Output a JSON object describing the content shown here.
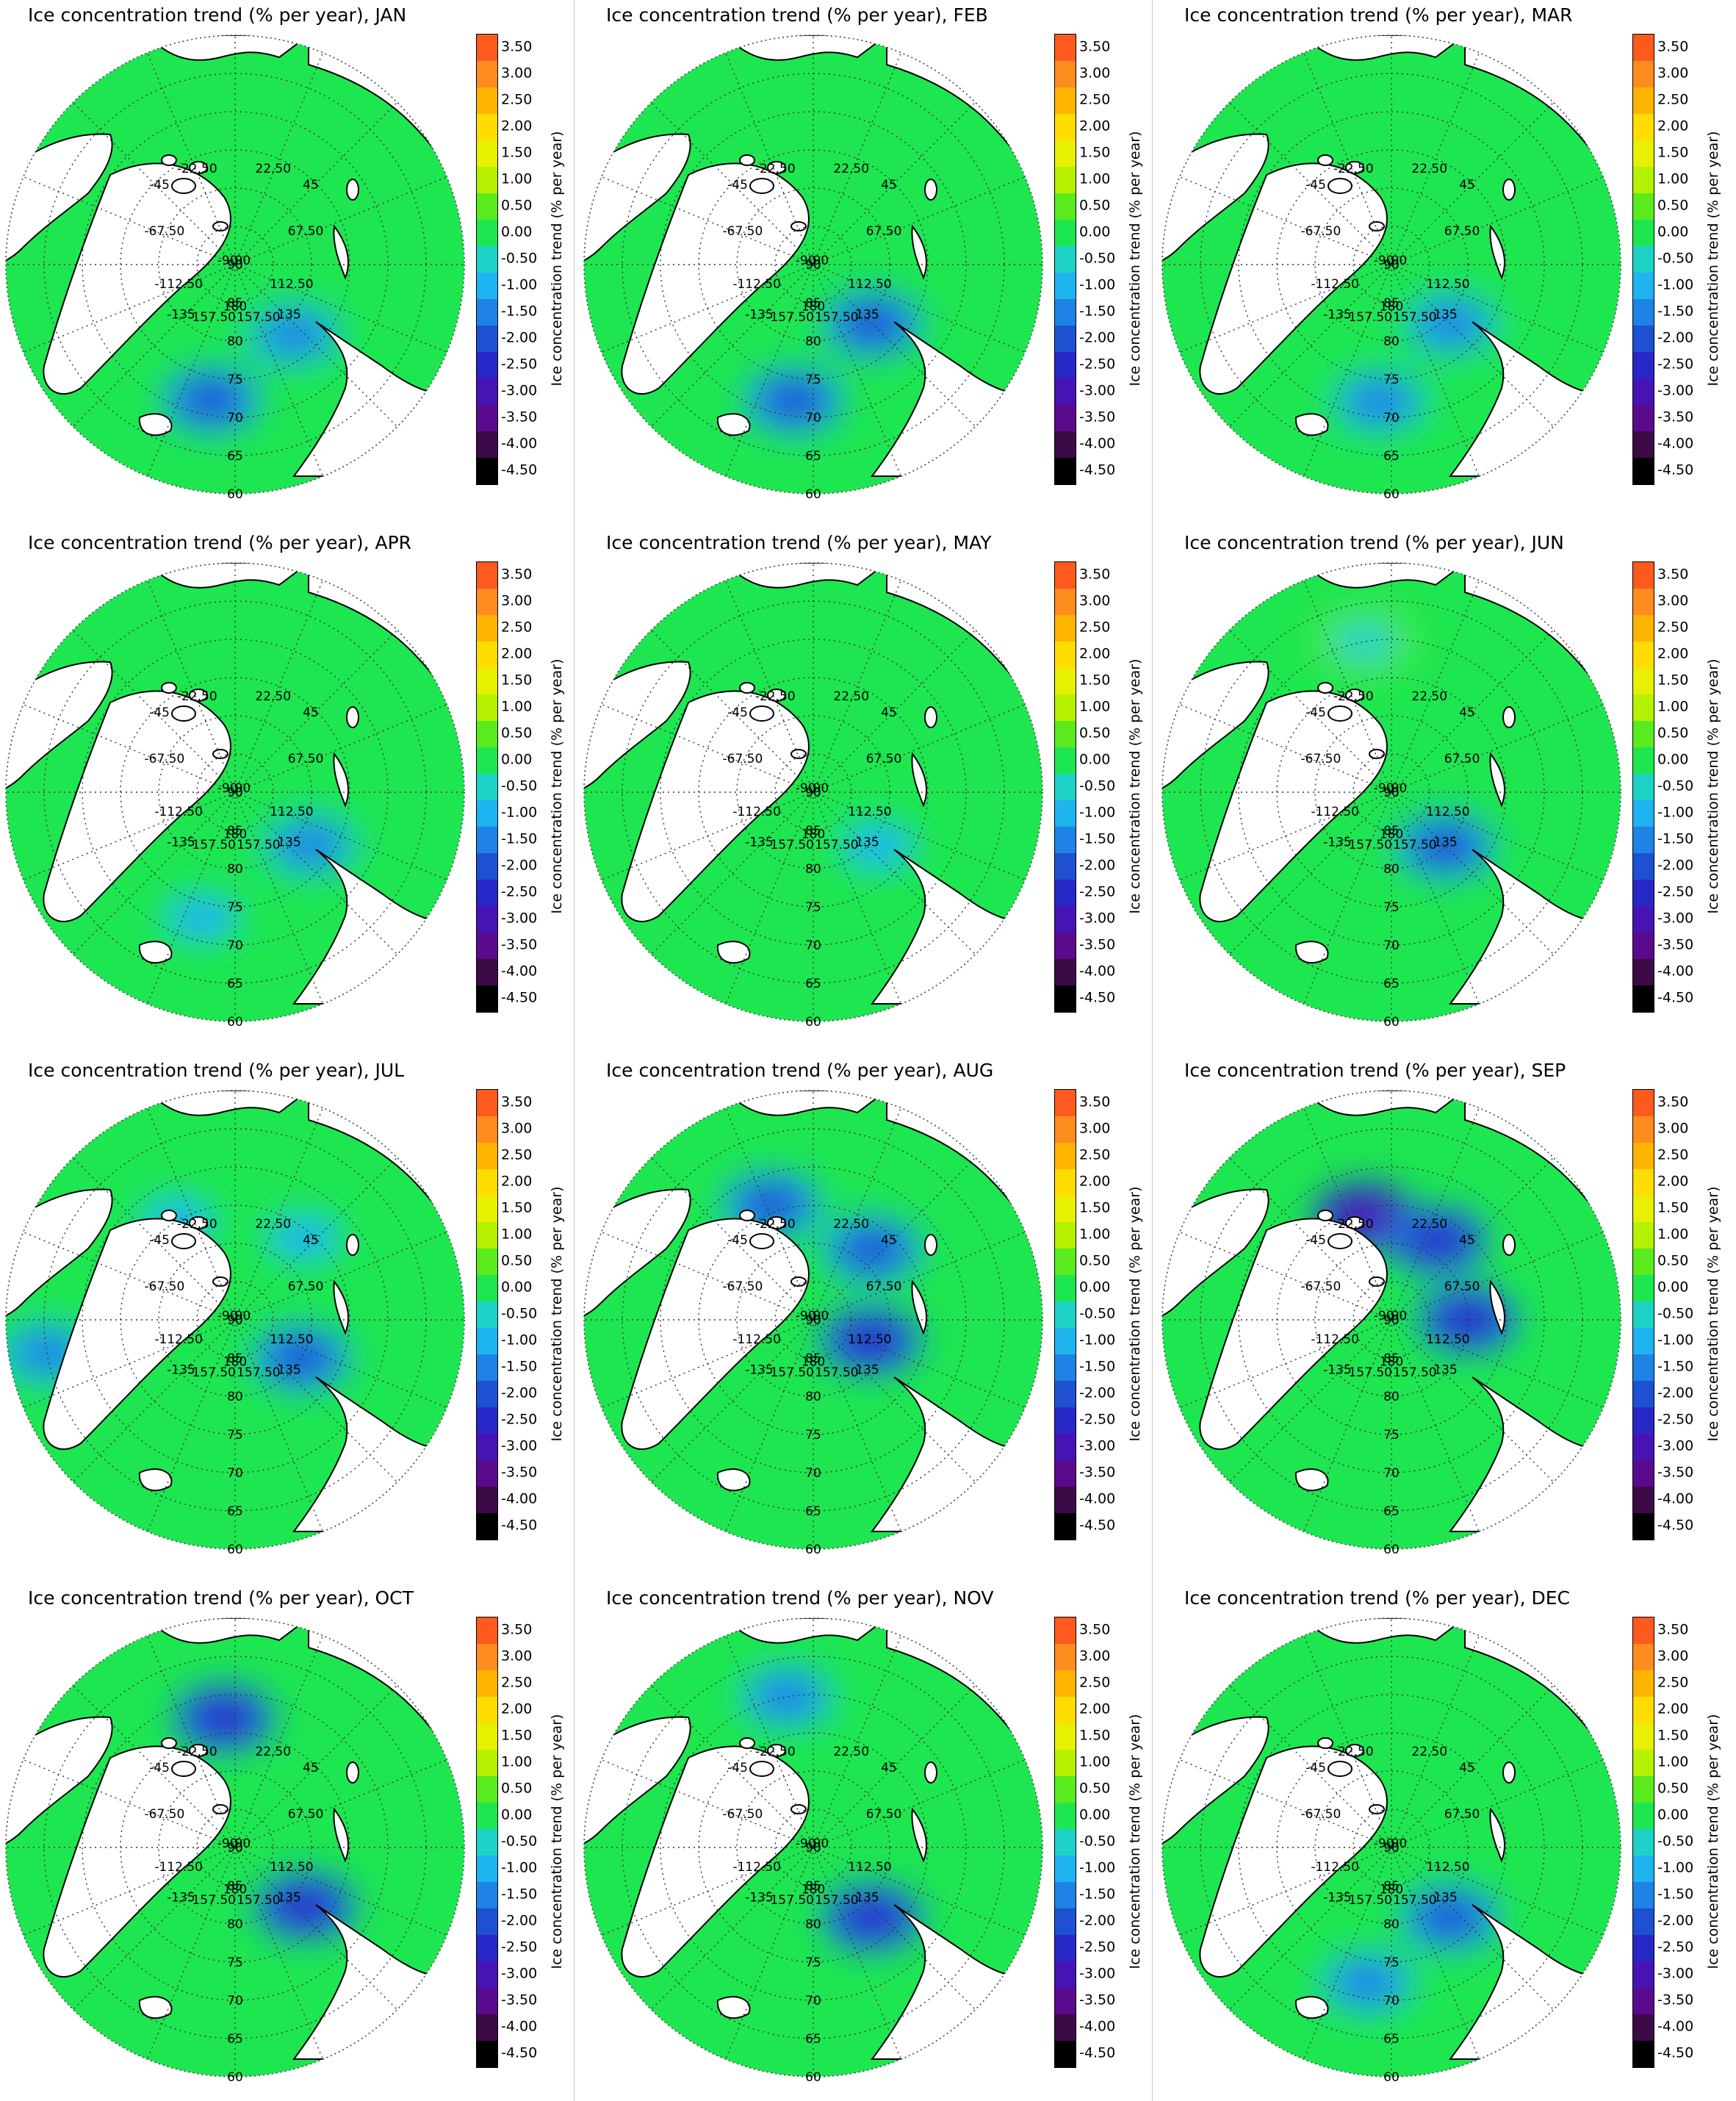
{
  "figure": {
    "colorbar": {
      "title": "Ice concentration trend (% per year)",
      "ticks": [
        "3.50",
        "3.00",
        "2.50",
        "2.00",
        "1.50",
        "1.00",
        "0.50",
        "0.00",
        "-0.50",
        "-1.00",
        "-1.50",
        "-2.00",
        "-2.50",
        "-3.00",
        "-3.50",
        "-4.00",
        "-4.50"
      ],
      "colors": [
        "#ff5a1e",
        "#ff8c1e",
        "#ffb400",
        "#ffdc00",
        "#e6f000",
        "#b4f000",
        "#5aeb1e",
        "#1ee650",
        "#1ed2c8",
        "#1eb4f0",
        "#1e82e6",
        "#1e50d2",
        "#2828c8",
        "#4614b4",
        "#5a0a8c",
        "#3c0a46",
        "#000000"
      ]
    },
    "map_labels": {
      "longitudes": [
        "180",
        "-157.50",
        "157.50",
        "-135",
        "135",
        "-112.50",
        "112.50",
        "-90",
        "90",
        "-67.50",
        "67.50",
        "-45",
        "45",
        "-22.50",
        "22.50"
      ],
      "latitudes": [
        "90",
        "85",
        "80",
        "75",
        "70",
        "65",
        "60"
      ]
    },
    "panels": [
      {
        "id": "JAN",
        "title": "Ice concentration trend (% per year), JAN",
        "blobs": [
          {
            "lon": 40,
            "lat": 78,
            "val": -1.5
          },
          {
            "lon": -10,
            "lat": 72,
            "val": -2.0
          }
        ]
      },
      {
        "id": "FEB",
        "title": "Ice concentration trend (% per year), FEB",
        "blobs": [
          {
            "lon": 45,
            "lat": 79,
            "val": -2.0
          },
          {
            "lon": -8,
            "lat": 72,
            "val": -2.0
          }
        ]
      },
      {
        "id": "MAR",
        "title": "Ice concentration trend (% per year), MAR",
        "blobs": [
          {
            "lon": 45,
            "lat": 79,
            "val": -1.5
          },
          {
            "lon": -5,
            "lat": 72,
            "val": -1.5
          }
        ]
      },
      {
        "id": "APR",
        "title": "Ice concentration trend (% per year), APR",
        "blobs": [
          {
            "lon": 55,
            "lat": 78,
            "val": -1.5
          },
          {
            "lon": -15,
            "lat": 73,
            "val": -1.0
          }
        ]
      },
      {
        "id": "MAY",
        "title": "Ice concentration trend (% per year), MAY",
        "blobs": [
          {
            "lon": 50,
            "lat": 79,
            "val": -1.0
          }
        ]
      },
      {
        "id": "JUN",
        "title": "Ice concentration trend (% per year), JUN",
        "blobs": [
          {
            "lon": 45,
            "lat": 80,
            "val": -2.0
          },
          {
            "lon": -170,
            "lat": 70,
            "val": -0.5
          }
        ]
      },
      {
        "id": "JUL",
        "title": "Ice concentration trend (% per year), JUL",
        "blobs": [
          {
            "lon": 60,
            "lat": 80,
            "val": -2.0
          },
          {
            "lon": -150,
            "lat": 75,
            "val": -1.0
          },
          {
            "lon": 140,
            "lat": 76,
            "val": -1.0
          },
          {
            "lon": -80,
            "lat": 65,
            "val": -1.5
          }
        ]
      },
      {
        "id": "AUG",
        "title": "Ice concentration trend (% per year), AUG",
        "blobs": [
          {
            "lon": -160,
            "lat": 74,
            "val": -2.0
          },
          {
            "lon": 140,
            "lat": 78,
            "val": -2.0
          },
          {
            "lon": 70,
            "lat": 82,
            "val": -2.5
          }
        ]
      },
      {
        "id": "SEP",
        "title": "Ice concentration trend (% per year), SEP",
        "blobs": [
          {
            "lon": -165,
            "lat": 76,
            "val": -3.0
          },
          {
            "lon": 150,
            "lat": 78,
            "val": -2.5
          },
          {
            "lon": 90,
            "lat": 80,
            "val": -2.5
          }
        ]
      },
      {
        "id": "OCT",
        "title": "Ice concentration trend (% per year), OCT",
        "blobs": [
          {
            "lon": -175,
            "lat": 73,
            "val": -2.5
          },
          {
            "lon": 50,
            "lat": 78,
            "val": -2.5
          }
        ]
      },
      {
        "id": "NOV",
        "title": "Ice concentration trend (% per year), NOV",
        "blobs": [
          {
            "lon": -170,
            "lat": 70,
            "val": -1.5
          },
          {
            "lon": 40,
            "lat": 78,
            "val": -2.5
          }
        ]
      },
      {
        "id": "DEC",
        "title": "Ice concentration trend (% per year), DEC",
        "blobs": [
          {
            "lon": 40,
            "lat": 78,
            "val": -2.0
          },
          {
            "lon": -10,
            "lat": 72,
            "val": -1.5
          }
        ]
      }
    ]
  }
}
